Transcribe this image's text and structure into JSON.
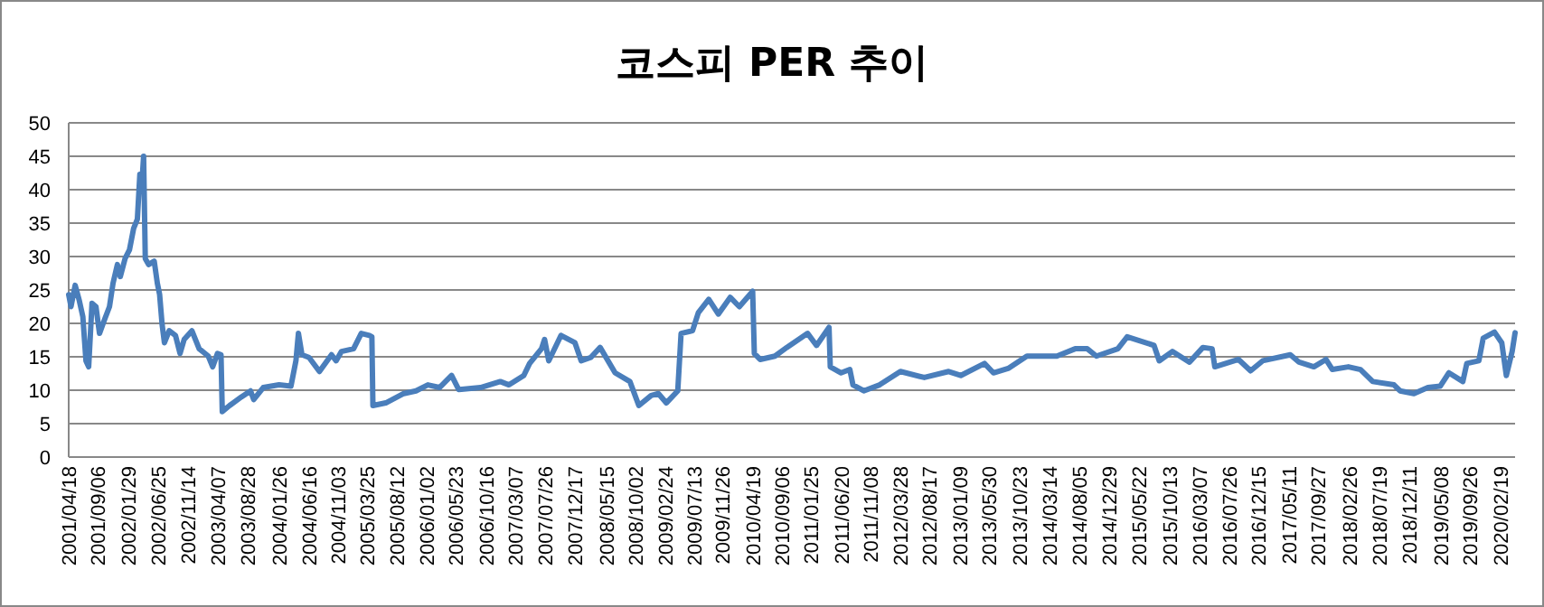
{
  "chart_data": {
    "type": "line",
    "title": "코스피 PER 추이",
    "x": [
      "2001-04-18",
      "2001-04-29",
      "2001-05-19",
      "2001-06-08",
      "2001-06-25",
      "2001-07-10",
      "2001-07-23",
      "2001-08-08",
      "2001-08-27",
      "2001-09-13",
      "2001-10-09",
      "2001-10-31",
      "2001-11-17",
      "2001-12-08",
      "2001-12-22",
      "2002-01-14",
      "2002-02-04",
      "2002-02-24",
      "2002-03-14",
      "2002-03-26",
      "2002-04-04",
      "2002-04-13",
      "2002-04-21",
      "2002-05-07",
      "2002-06-03",
      "2002-06-18",
      "2002-06-29",
      "2002-07-11",
      "2002-07-22",
      "2002-08-14",
      "2002-09-13",
      "2002-10-05",
      "2002-10-25",
      "2002-12-01",
      "2003-01-05",
      "2003-02-18",
      "2003-03-11",
      "2003-04-03",
      "2003-04-20",
      "2003-04-26",
      "2003-05-31",
      "2003-07-27",
      "2003-09-09",
      "2003-09-24",
      "2003-11-09",
      "2004-01-24",
      "2004-03-21",
      "2004-04-14",
      "2004-04-26",
      "2004-05-13",
      "2004-06-16",
      "2004-08-05",
      "2004-10-02",
      "2004-10-24",
      "2004-11-19",
      "2005-01-16",
      "2005-02-22",
      "2005-04-02",
      "2005-04-14",
      "2005-04-19",
      "2005-06-20",
      "2005-09-14",
      "2005-11-12",
      "2006-01-08",
      "2006-03-05",
      "2006-05-02",
      "2006-06-05",
      "2006-09-18",
      "2006-12-22",
      "2007-02-02",
      "2007-04-14",
      "2007-05-12",
      "2007-07-08",
      "2007-07-23",
      "2007-08-12",
      "2007-10-10",
      "2007-12-16",
      "2008-01-15",
      "2008-03-01",
      "2008-04-15",
      "2008-06-26",
      "2008-09-05",
      "2008-10-18",
      "2008-12-16",
      "2009-01-20",
      "2009-02-27",
      "2009-04-23",
      "2009-05-09",
      "2009-07-03",
      "2009-07-31",
      "2009-09-19",
      "2009-11-04",
      "2009-12-31",
      "2010-02-13",
      "2010-04-18",
      "2010-04-26",
      "2010-05-24",
      "2010-08-03",
      "2010-09-29",
      "2011-01-07",
      "2011-02-19",
      "2011-04-20",
      "2011-04-26",
      "2011-06-17",
      "2011-07-29",
      "2011-08-13",
      "2011-10-04",
      "2011-12-19",
      "2012-03-28",
      "2012-07-21",
      "2012-11-15",
      "2013-01-12",
      "2013-05-06",
      "2013-06-18",
      "2013-08-31",
      "2013-11-26",
      "2014-04-19",
      "2014-07-16",
      "2014-09-12",
      "2014-10-26",
      "2015-02-06",
      "2015-03-23",
      "2015-07-30",
      "2015-08-24",
      "2015-10-26",
      "2016-01-16",
      "2016-03-21",
      "2016-05-04",
      "2016-05-17",
      "2016-09-08",
      "2016-11-05",
      "2017-01-02",
      "2017-05-15",
      "2017-06-26",
      "2017-09-05",
      "2017-11-02",
      "2017-12-03",
      "2018-02-18",
      "2018-04-17",
      "2018-06-15",
      "2018-09-25",
      "2018-10-24",
      "2018-12-30",
      "2019-03-07",
      "2019-05-05",
      "2019-06-16",
      "2019-08-22",
      "2019-09-10",
      "2019-11-07",
      "2019-11-28",
      "2020-01-21",
      "2020-02-25",
      "2020-03-18",
      "2020-04-15",
      "2020-04-29"
    ],
    "series": [
      {
        "color": "#4a7ebb",
        "values": [
          24.3,
          22.5,
          25.7,
          23.4,
          21,
          14.4,
          13.5,
          23,
          22.5,
          18.5,
          20.7,
          22.5,
          26,
          28.8,
          27,
          29.7,
          31,
          34.2,
          35.6,
          42.3,
          40.5,
          45,
          29.7,
          28.8,
          29.3,
          26,
          24.3,
          19.8,
          17.1,
          18.9,
          18.2,
          15.5,
          17.6,
          18.9,
          16.2,
          15.1,
          13.5,
          15.5,
          15.3,
          6.8,
          7.7,
          9,
          9.9,
          8.6,
          10.4,
          10.8,
          10.6,
          14.4,
          18.5,
          15.3,
          14.9,
          12.8,
          15.3,
          14.4,
          15.8,
          16.2,
          18.5,
          18.2,
          18,
          7.7,
          8.1,
          9.5,
          9.9,
          10.8,
          10.4,
          12.2,
          10.1,
          10.4,
          11.3,
          10.8,
          12.2,
          14,
          16.2,
          17.6,
          14.4,
          18.2,
          17.1,
          14.4,
          14.9,
          16.4,
          12.6,
          11.3,
          7.7,
          9.2,
          9.5,
          8.1,
          9.9,
          18.5,
          18.9,
          21.6,
          23.6,
          21.4,
          23.9,
          22.5,
          24.8,
          15.5,
          14.6,
          15.1,
          16.4,
          18.5,
          16.7,
          19.4,
          13.5,
          12.6,
          13.1,
          10.8,
          9.9,
          10.8,
          12.8,
          11.9,
          12.8,
          12.2,
          14,
          12.6,
          13.3,
          15.1,
          15.1,
          16.2,
          16.2,
          15.1,
          16.2,
          18,
          16.7,
          14.4,
          15.8,
          14.2,
          16.4,
          16.2,
          13.5,
          14.6,
          12.9,
          14.4,
          15.3,
          14.2,
          13.5,
          14.6,
          13.1,
          13.5,
          13.1,
          11.3,
          10.8,
          9.9,
          9.5,
          10.4,
          10.6,
          12.6,
          11.3,
          14,
          14.4,
          17.8,
          18.7,
          17.1,
          12.2,
          15.8,
          18.6
        ]
      }
    ],
    "xlim": [
      "2001-04-18",
      "2020-04-29"
    ],
    "xticks": [
      {
        "value": "2001-04-18",
        "label": "2001/04/18"
      },
      {
        "value": "2001-09-06",
        "label": "2001/09/06"
      },
      {
        "value": "2002-01-29",
        "label": "2002/01/29"
      },
      {
        "value": "2002-06-25",
        "label": "2002/06/25"
      },
      {
        "value": "2002-11-14",
        "label": "2002/11/14"
      },
      {
        "value": "2003-04-07",
        "label": "2003/04/07"
      },
      {
        "value": "2003-08-28",
        "label": "2003/08/28"
      },
      {
        "value": "2004-01-26",
        "label": "2004/01/26"
      },
      {
        "value": "2004-06-16",
        "label": "2004/06/16"
      },
      {
        "value": "2004-11-03",
        "label": "2004/11/03"
      },
      {
        "value": "2005-03-25",
        "label": "2005/03/25"
      },
      {
        "value": "2005-08-12",
        "label": "2005/08/12"
      },
      {
        "value": "2006-01-02",
        "label": "2006/01/02"
      },
      {
        "value": "2006-05-23",
        "label": "2006/05/23"
      },
      {
        "value": "2006-10-16",
        "label": "2006/10/16"
      },
      {
        "value": "2007-03-07",
        "label": "2007/03/07"
      },
      {
        "value": "2007-07-26",
        "label": "2007/07/26"
      },
      {
        "value": "2007-12-17",
        "label": "2007/12/17"
      },
      {
        "value": "2008-05-15",
        "label": "2008/05/15"
      },
      {
        "value": "2008-10-02",
        "label": "2008/10/02"
      },
      {
        "value": "2009-02-24",
        "label": "2009/02/24"
      },
      {
        "value": "2009-07-13",
        "label": "2009/07/13"
      },
      {
        "value": "2009-11-26",
        "label": "2009/11/26"
      },
      {
        "value": "2010-04-19",
        "label": "2010/04/19"
      },
      {
        "value": "2010-09-06",
        "label": "2010/09/06"
      },
      {
        "value": "2011-01-25",
        "label": "2011/01/25"
      },
      {
        "value": "2011-06-20",
        "label": "2011/06/20"
      },
      {
        "value": "2011-11-08",
        "label": "2011/11/08"
      },
      {
        "value": "2012-03-28",
        "label": "2012/03/28"
      },
      {
        "value": "2012-08-17",
        "label": "2012/08/17"
      },
      {
        "value": "2013-01-09",
        "label": "2013/01/09"
      },
      {
        "value": "2013-05-30",
        "label": "2013/05/30"
      },
      {
        "value": "2013-10-23",
        "label": "2013/10/23"
      },
      {
        "value": "2014-03-14",
        "label": "2014/03/14"
      },
      {
        "value": "2014-08-05",
        "label": "2014/08/05"
      },
      {
        "value": "2014-12-29",
        "label": "2014/12/29"
      },
      {
        "value": "2015-05-22",
        "label": "2015/05/22"
      },
      {
        "value": "2015-10-13",
        "label": "2015/10/13"
      },
      {
        "value": "2016-03-07",
        "label": "2016/03/07"
      },
      {
        "value": "2016-07-26",
        "label": "2016/07/26"
      },
      {
        "value": "2016-12-15",
        "label": "2016/12/15"
      },
      {
        "value": "2017-05-11",
        "label": "2017/05/11"
      },
      {
        "value": "2017-09-27",
        "label": "2017/09/27"
      },
      {
        "value": "2018-02-26",
        "label": "2018/02/26"
      },
      {
        "value": "2018-07-19",
        "label": "2018/07/19"
      },
      {
        "value": "2018-12-11",
        "label": "2018/12/11"
      },
      {
        "value": "2019-05-08",
        "label": "2019/05/08"
      },
      {
        "value": "2019-09-26",
        "label": "2019/09/26"
      },
      {
        "value": "2020-02-19",
        "label": "2020/02/19"
      }
    ],
    "ylim": [
      0,
      50
    ],
    "yticks": [
      0,
      5,
      10,
      15,
      20,
      25,
      30,
      35,
      40,
      45,
      50
    ],
    "grid": "y",
    "marker": "none",
    "line_style": "solid"
  }
}
